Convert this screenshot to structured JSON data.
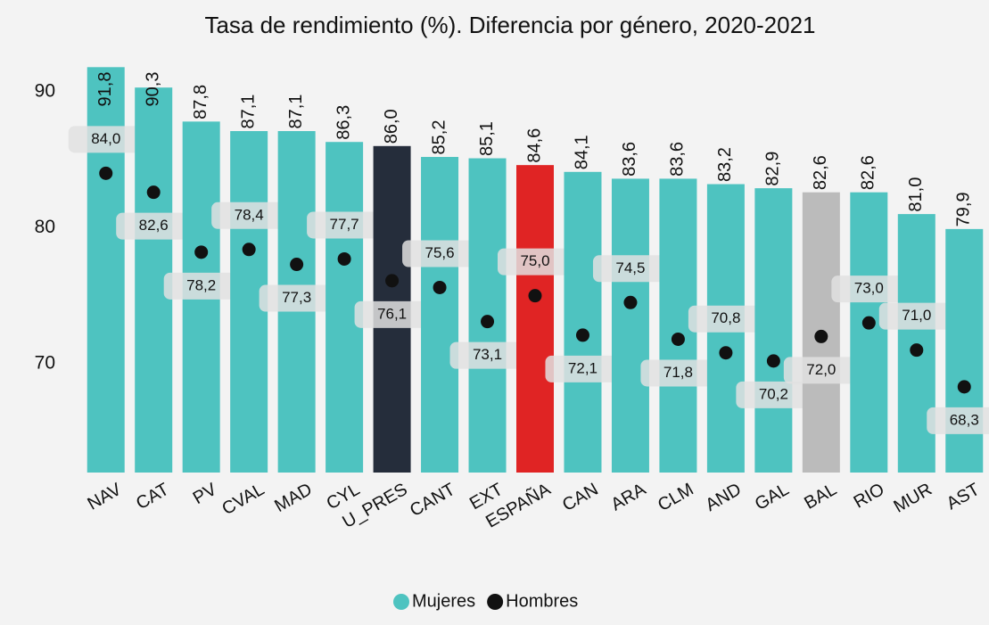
{
  "chart_data": {
    "type": "bar",
    "title": "Tasa de rendimiento (%). Diferencia por género, 2020-2021",
    "categories": [
      "NAV",
      "CAT",
      "PV",
      "CVAL",
      "MAD",
      "CYL",
      "U_PRES",
      "CANT",
      "EXT",
      "ESPAÑA",
      "CAN",
      "ARA",
      "CLM",
      "AND",
      "GAL",
      "BAL",
      "RIO",
      "MUR",
      "AST"
    ],
    "series": [
      {
        "name": "Mujeres",
        "color": "#4ec3c0",
        "colors": [
          "#4ec3c0",
          "#4ec3c0",
          "#4ec3c0",
          "#4ec3c0",
          "#4ec3c0",
          "#4ec3c0",
          "#252d3b",
          "#4ec3c0",
          "#4ec3c0",
          "#e02424",
          "#4ec3c0",
          "#4ec3c0",
          "#4ec3c0",
          "#4ec3c0",
          "#4ec3c0",
          "#bbbbbb",
          "#4ec3c0",
          "#4ec3c0",
          "#4ec3c0"
        ],
        "values": [
          91.8,
          90.3,
          87.8,
          87.1,
          87.1,
          86.3,
          86.0,
          85.2,
          85.1,
          84.6,
          84.1,
          83.6,
          83.6,
          83.2,
          82.9,
          82.6,
          82.6,
          81.0,
          79.9
        ],
        "value_labels": [
          "91,8",
          "90,3",
          "87,8",
          "87,1",
          "87,1",
          "86,3",
          "86,0",
          "85,2",
          "85,1",
          "84,6",
          "84,1",
          "83,6",
          "83,6",
          "83,2",
          "82,9",
          "82,6",
          "82,6",
          "81,0",
          "79,9"
        ]
      },
      {
        "name": "Hombres",
        "color": "#111111",
        "values": [
          84.0,
          82.6,
          78.2,
          78.4,
          77.3,
          77.7,
          76.1,
          75.6,
          73.1,
          75.0,
          72.1,
          74.5,
          71.8,
          70.8,
          70.2,
          72.0,
          73.0,
          71.0,
          68.3
        ],
        "value_labels": [
          "84,0",
          "82,6",
          "78,2",
          "78,4",
          "77,3",
          "77,7",
          "76,1",
          "75,6",
          "73,1",
          "75,0",
          "72,1",
          "74,5",
          "71,8",
          "70,8",
          "70,2",
          "72,0",
          "73,0",
          "71,0",
          "68,3"
        ]
      }
    ],
    "ylim": [
      62,
      93
    ],
    "yticks": [
      70,
      80,
      90
    ],
    "grid": false,
    "legend": "bottom"
  }
}
